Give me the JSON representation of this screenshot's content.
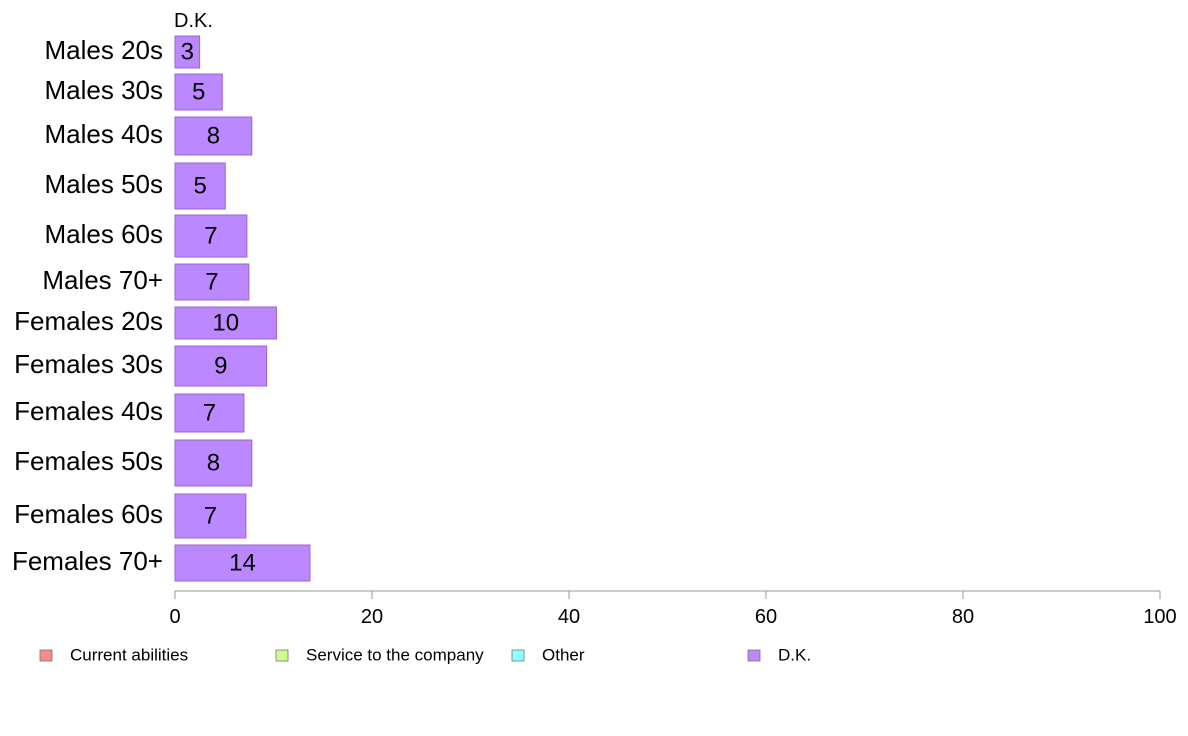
{
  "chart_data": {
    "type": "bar",
    "orientation": "horizontal",
    "stacked": true,
    "series_header": "D.K.",
    "categories": [
      "Males 20s",
      "Males 30s",
      "Males 40s",
      "Males 50s",
      "Males 60s",
      "Males 70+",
      "Females 20s",
      "Females 30s",
      "Females 40s",
      "Females 50s",
      "Females 60s",
      "Females 70+"
    ],
    "values": [
      2.5,
      4.8,
      7.8,
      5.1,
      7.3,
      7.5,
      10.3,
      9.3,
      7.0,
      7.8,
      7.2,
      13.7
    ],
    "value_labels": [
      "3",
      "5",
      "8",
      "5",
      "7",
      "7",
      "10",
      "9",
      "7",
      "8",
      "7",
      "14"
    ],
    "series": [
      {
        "name": "Current abilities",
        "color": "#f58c8c"
      },
      {
        "name": "Service to the company",
        "color": "#ccff8c"
      },
      {
        "name": "Other",
        "color": "#8cffff"
      },
      {
        "name": "D.K.",
        "color": "#bb88ff"
      }
    ],
    "bar_color": "#bb88ff",
    "bar_stroke": "#9966cc",
    "xlim": [
      0,
      100
    ],
    "xticks": [
      "0",
      "20",
      "40",
      "60",
      "80",
      "100"
    ],
    "grid": false,
    "legend_position": "bottom"
  }
}
